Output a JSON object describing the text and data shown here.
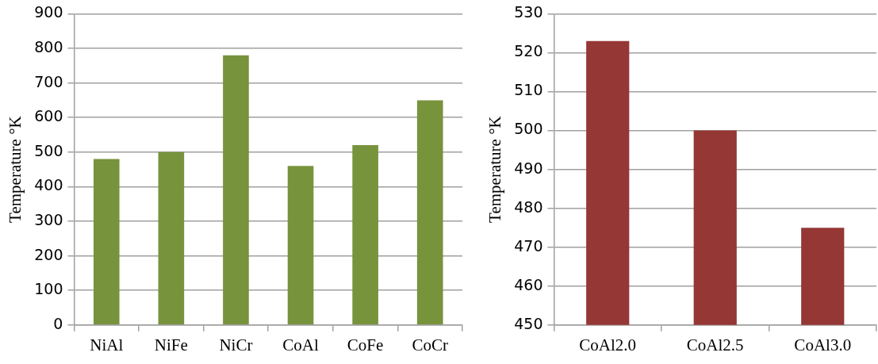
{
  "chart_data": [
    {
      "type": "bar",
      "ylabel": "Temperature °K",
      "categories": [
        "NiAl",
        "NiFe",
        "NiCr",
        "CoAl",
        "CoFe",
        "CoCr"
      ],
      "values": [
        480,
        500,
        780,
        460,
        520,
        650
      ],
      "color": "#77933c",
      "ylim": [
        0,
        900
      ],
      "yticks": [
        0,
        100,
        200,
        300,
        400,
        500,
        600,
        700,
        800,
        900
      ],
      "grid": "y",
      "legend": false
    },
    {
      "type": "bar",
      "ylabel": "Temperature °K",
      "categories": [
        "CoAl2.0",
        "CoAl2.5",
        "CoAl3.0"
      ],
      "values": [
        523,
        500,
        475
      ],
      "color": "#953735",
      "ylim": [
        450,
        530
      ],
      "yticks": [
        450,
        460,
        470,
        480,
        490,
        500,
        510,
        520,
        530
      ],
      "grid": "y",
      "legend": false
    }
  ]
}
